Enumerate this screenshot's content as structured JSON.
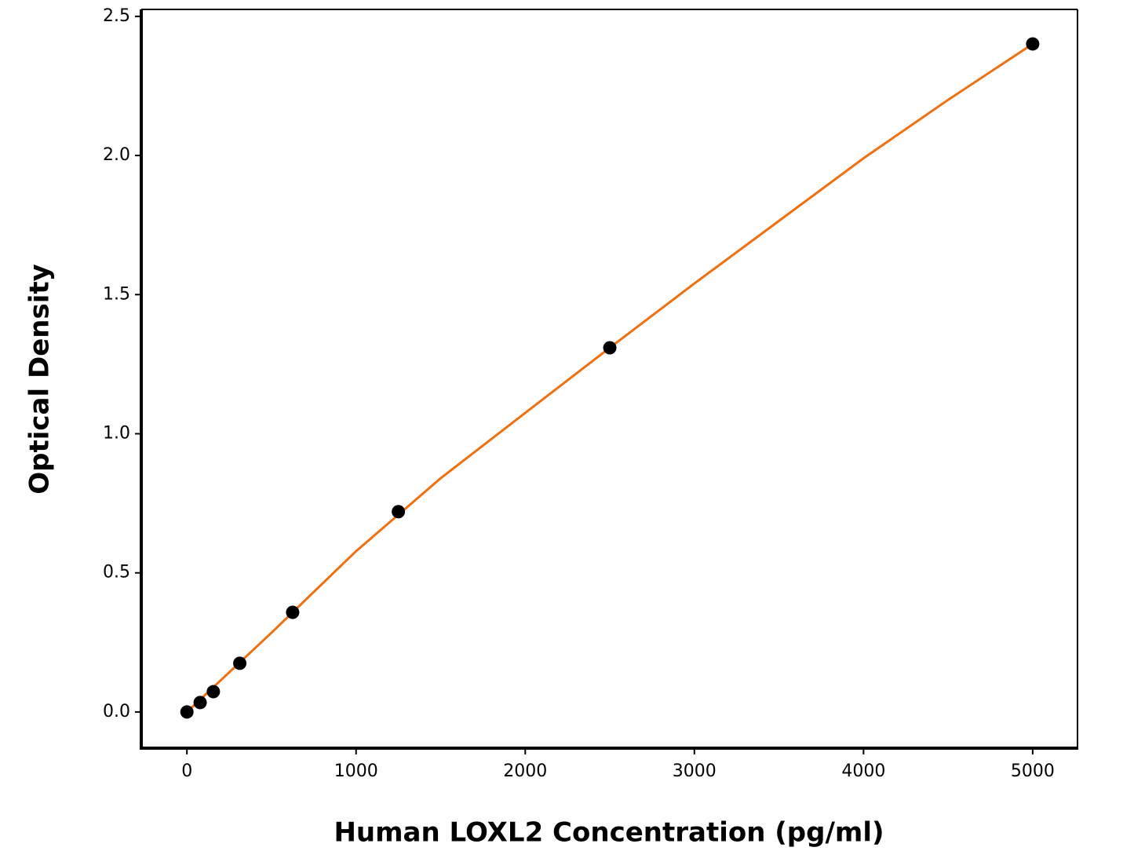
{
  "chart_data": {
    "type": "scatter",
    "x_label": "Human LOXL2 Concentration (pg/ml)",
    "y_label": "Optical Density",
    "x": [
      0,
      78.125,
      156.25,
      312.5,
      625,
      1250,
      2500,
      5000
    ],
    "values": [
      0,
      0.034,
      0.073,
      0.175,
      0.358,
      0.72,
      1.309,
      2.401
    ],
    "color": "#000000",
    "fit": {
      "color": "#f07010",
      "x": [
        0,
        500,
        1000,
        1500,
        2000,
        2500,
        3000,
        3500,
        4000,
        4500,
        5000
      ],
      "values": [
        0,
        0.285,
        0.578,
        0.84,
        1.075,
        1.309,
        1.54,
        1.765,
        1.99,
        2.2,
        2.401
      ]
    },
    "xlim": [
      -270,
      5265
    ],
    "ylim": [
      -0.13,
      2.525
    ],
    "xticks": [
      0,
      1000,
      2000,
      3000,
      4000,
      5000
    ],
    "yticks": [
      {
        "value": 0,
        "label": "0.0"
      },
      0.5,
      {
        "value": 1,
        "label": "1.0"
      },
      1.5,
      {
        "value": 2,
        "label": "2.0"
      },
      2.5
    ]
  }
}
